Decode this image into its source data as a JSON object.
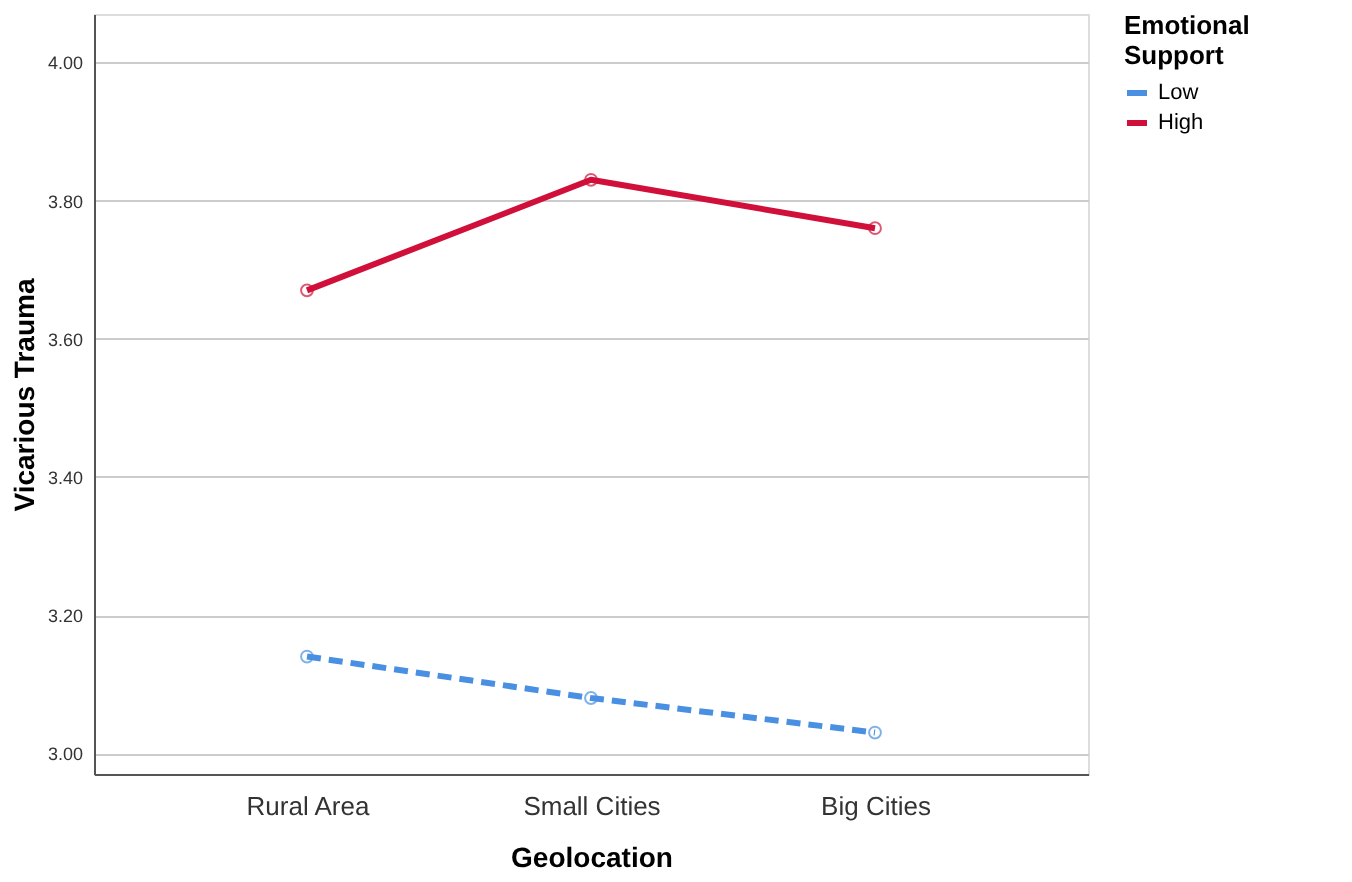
{
  "chart_data": {
    "type": "line",
    "xlabel": "Geolocation",
    "ylabel": "Vicarious Trauma",
    "legend_title": "Emotional Support",
    "categories": [
      "Rural Area",
      "Small Cities",
      "Big Cities"
    ],
    "series": [
      {
        "name": "Low",
        "color": "#4a90e2",
        "line_style": "dashed",
        "values": [
          3.14,
          3.08,
          3.03
        ]
      },
      {
        "name": "High",
        "color": "#d0103a",
        "line_style": "solid",
        "values": [
          3.67,
          3.83,
          3.76
        ]
      }
    ],
    "ylim": [
      2.97,
      4.07
    ],
    "yticks": [
      {
        "value": 3,
        "label": "3.00"
      },
      {
        "value": 3.2,
        "label": "3.20"
      },
      {
        "value": 3.4,
        "label": "3.40"
      },
      {
        "value": 3.6,
        "label": "3.60"
      },
      {
        "value": 3.8,
        "label": "3.80"
      },
      {
        "value": 4,
        "label": "4.00"
      }
    ],
    "grid": "y",
    "legend": "top right",
    "marker": "circle"
  }
}
